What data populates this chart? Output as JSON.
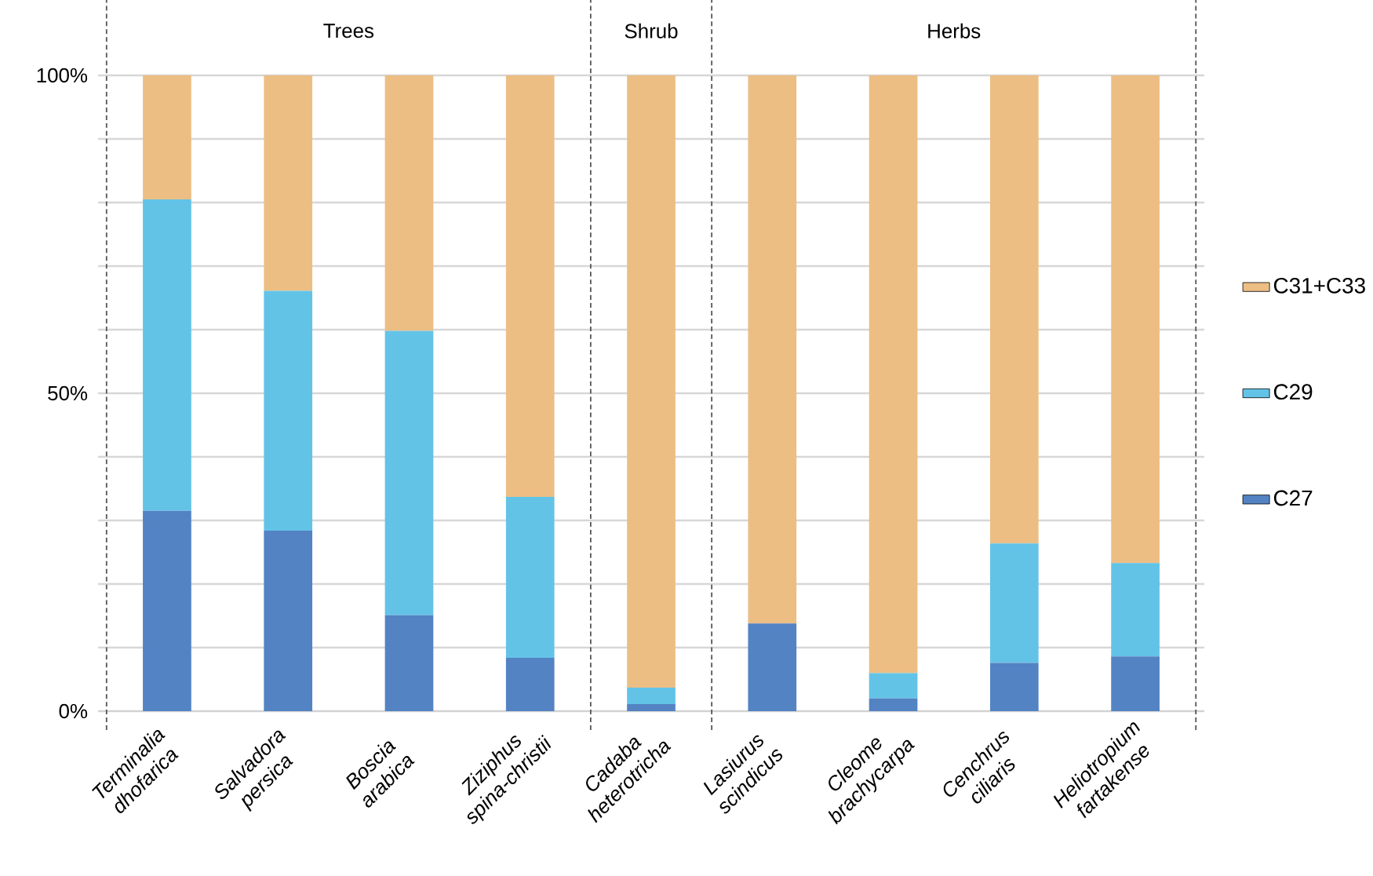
{
  "chart_data": {
    "type": "bar",
    "stacked": true,
    "categories": [
      "Terminalia dhofarica",
      "Salvadora persica",
      "Boscia arabica",
      "Ziziphus spina-christii",
      "Cadaba heterotricha",
      "Lasiurus scindicus",
      "Cleome brachycarpa",
      "Cenchrus ciliaris",
      "Heliotropium fartakense"
    ],
    "series": [
      {
        "name": "C27",
        "color": "#5383c3",
        "values": [
          31.5,
          28.4,
          15.1,
          8.4,
          1.1,
          13.8,
          2.0,
          7.6,
          8.6
        ]
      },
      {
        "name": "C29",
        "color": "#63c3e6",
        "values": [
          49.0,
          37.7,
          44.7,
          25.3,
          2.6,
          0,
          4.0,
          18.8,
          14.7
        ]
      },
      {
        "name": "C31+C33",
        "color": "#ecbe84",
        "values": [
          19.5,
          33.9,
          40.2,
          66.3,
          96.3,
          86.2,
          94.0,
          73.6,
          76.7
        ]
      }
    ],
    "ylim": [
      0,
      100
    ],
    "yticks": [
      {
        "value": 0,
        "label": "0%"
      },
      {
        "value": 10,
        "label": null
      },
      {
        "value": 20,
        "label": null
      },
      {
        "value": 30,
        "label": null
      },
      {
        "value": 40,
        "label": null
      },
      {
        "value": 50,
        "label": "50%"
      },
      {
        "value": 60,
        "label": null
      },
      {
        "value": 70,
        "label": null
      },
      {
        "value": 80,
        "label": null
      },
      {
        "value": 90,
        "label": null
      },
      {
        "value": 100,
        "label": "100%"
      }
    ],
    "annotations": [
      "Trees",
      "Shrub",
      "Herbs"
    ],
    "grid": "y",
    "legend": "right"
  }
}
